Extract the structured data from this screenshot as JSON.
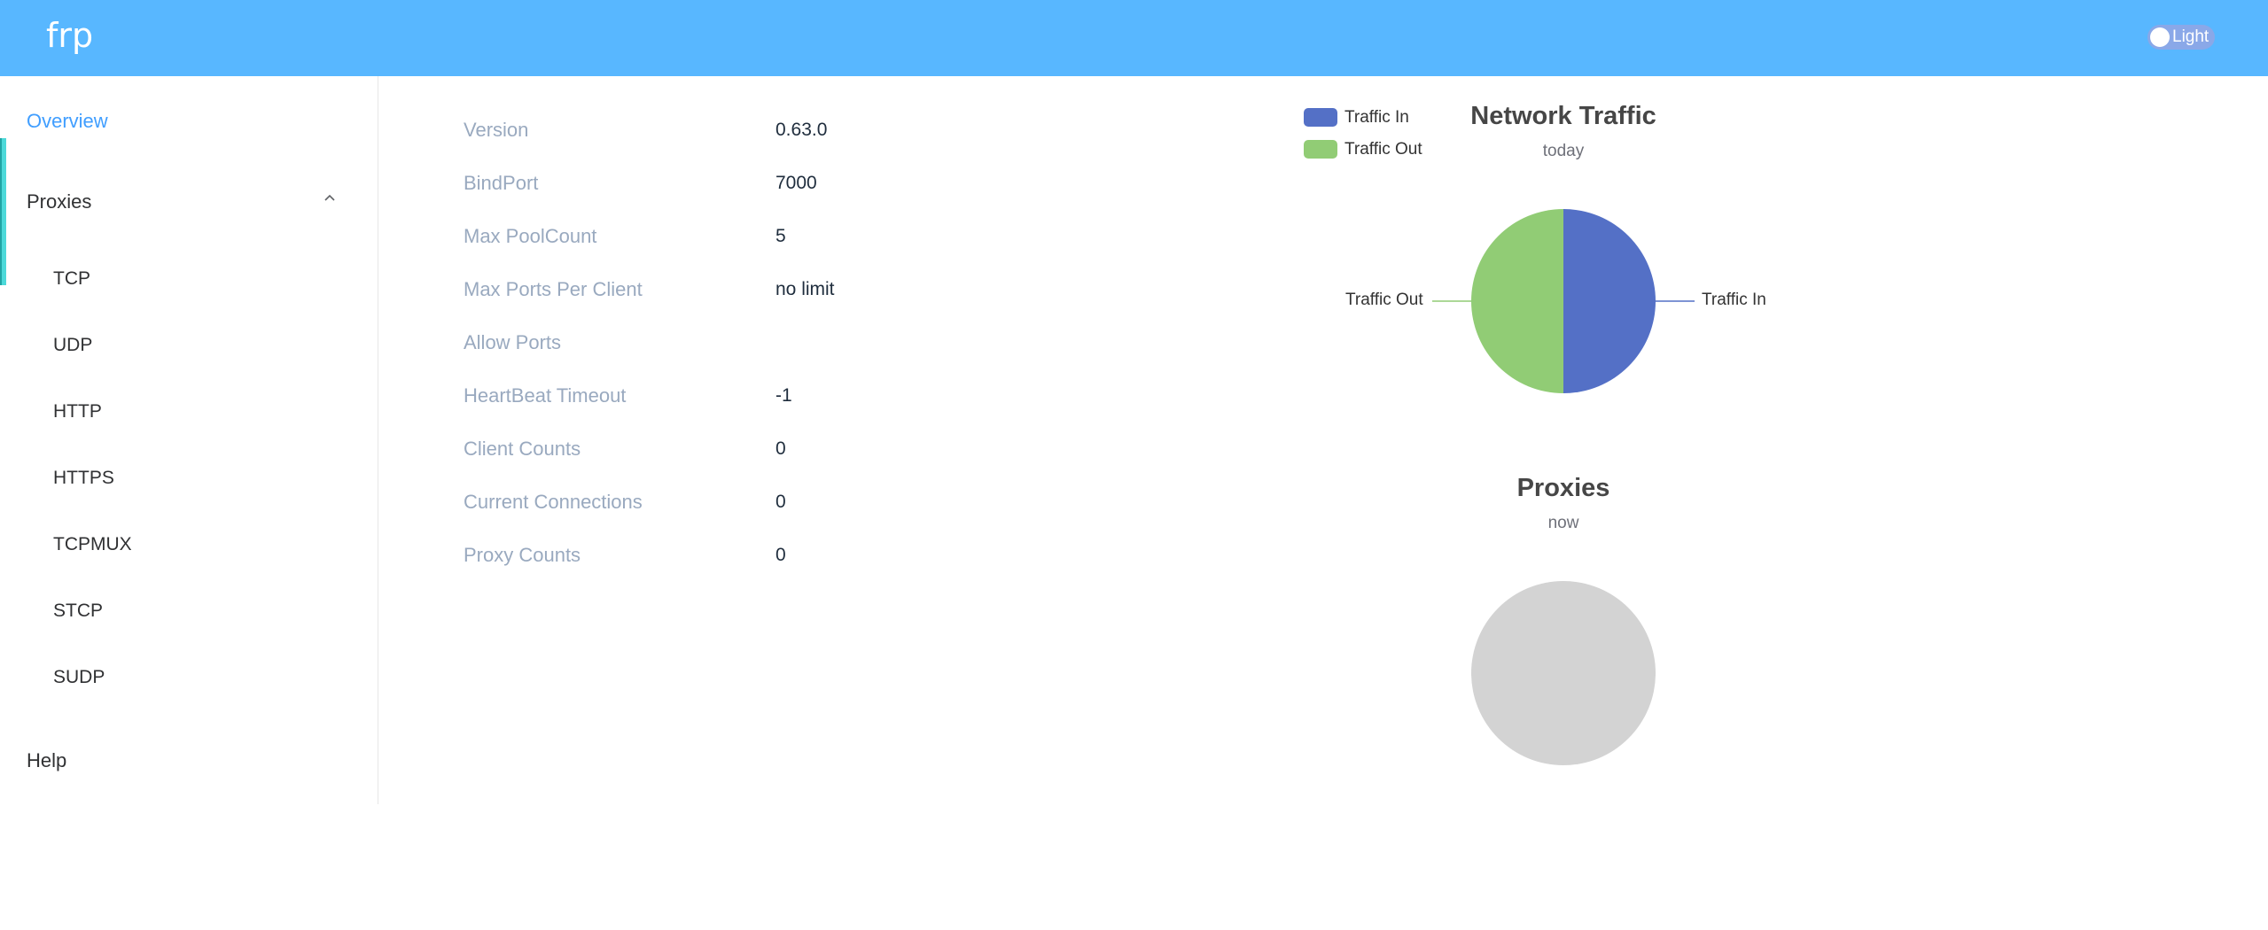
{
  "header": {
    "brand": "frp",
    "theme_label": "Light"
  },
  "sidebar": {
    "overview": "Overview",
    "proxies": "Proxies",
    "sub_items": [
      "TCP",
      "UDP",
      "HTTP",
      "HTTPS",
      "TCPMUX",
      "STCP",
      "SUDP"
    ],
    "help": "Help"
  },
  "info": [
    {
      "label": "Version",
      "value": "0.63.0"
    },
    {
      "label": "BindPort",
      "value": "7000"
    },
    {
      "label": "Max PoolCount",
      "value": "5"
    },
    {
      "label": "Max Ports Per Client",
      "value": "no limit"
    },
    {
      "label": "Allow Ports",
      "value": ""
    },
    {
      "label": "HeartBeat Timeout",
      "value": "-1"
    },
    {
      "label": "Client Counts",
      "value": "0"
    },
    {
      "label": "Current Connections",
      "value": "0"
    },
    {
      "label": "Proxy Counts",
      "value": "0"
    }
  ],
  "colors": {
    "header": "#58b7ff",
    "traffic_in": "#5470c6",
    "traffic_out": "#91cc75",
    "empty_pie": "#d3d3d3",
    "accent": "#409eff"
  },
  "chart_data": [
    {
      "type": "pie",
      "title": "Network Traffic",
      "subtitle": "today",
      "legend_position": "top-left",
      "categories": [
        "Traffic In",
        "Traffic Out"
      ],
      "values": [
        50,
        50
      ]
    },
    {
      "type": "pie",
      "title": "Proxies",
      "subtitle": "now",
      "categories": [],
      "values": []
    }
  ]
}
